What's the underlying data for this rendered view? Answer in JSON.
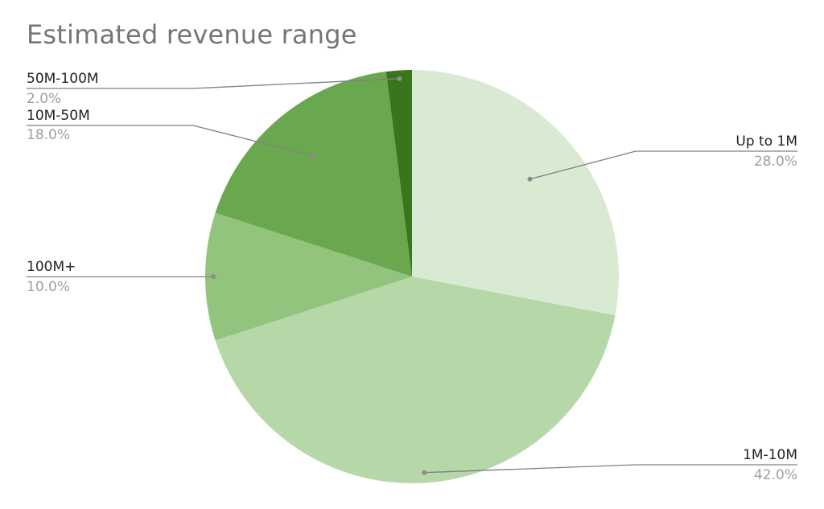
{
  "chart_data": {
    "type": "pie",
    "title": "Estimated revenue range",
    "slices": [
      {
        "label": "Up to 1M",
        "value": 28.0,
        "percent_text": "28.0%",
        "color": "#d9ead3"
      },
      {
        "label": "1M-10M",
        "value": 42.0,
        "percent_text": "42.0%",
        "color": "#b6d7a8"
      },
      {
        "label": "100M+",
        "value": 10.0,
        "percent_text": "10.0%",
        "color": "#93c47d"
      },
      {
        "label": "10M-50M",
        "value": 18.0,
        "percent_text": "18.0%",
        "color": "#6aa84f"
      },
      {
        "label": "50M-100M",
        "value": 2.0,
        "percent_text": "2.0%",
        "color": "#38761d"
      }
    ],
    "start_angle_deg": 0,
    "direction": "clockwise",
    "legend": "callout labels"
  }
}
